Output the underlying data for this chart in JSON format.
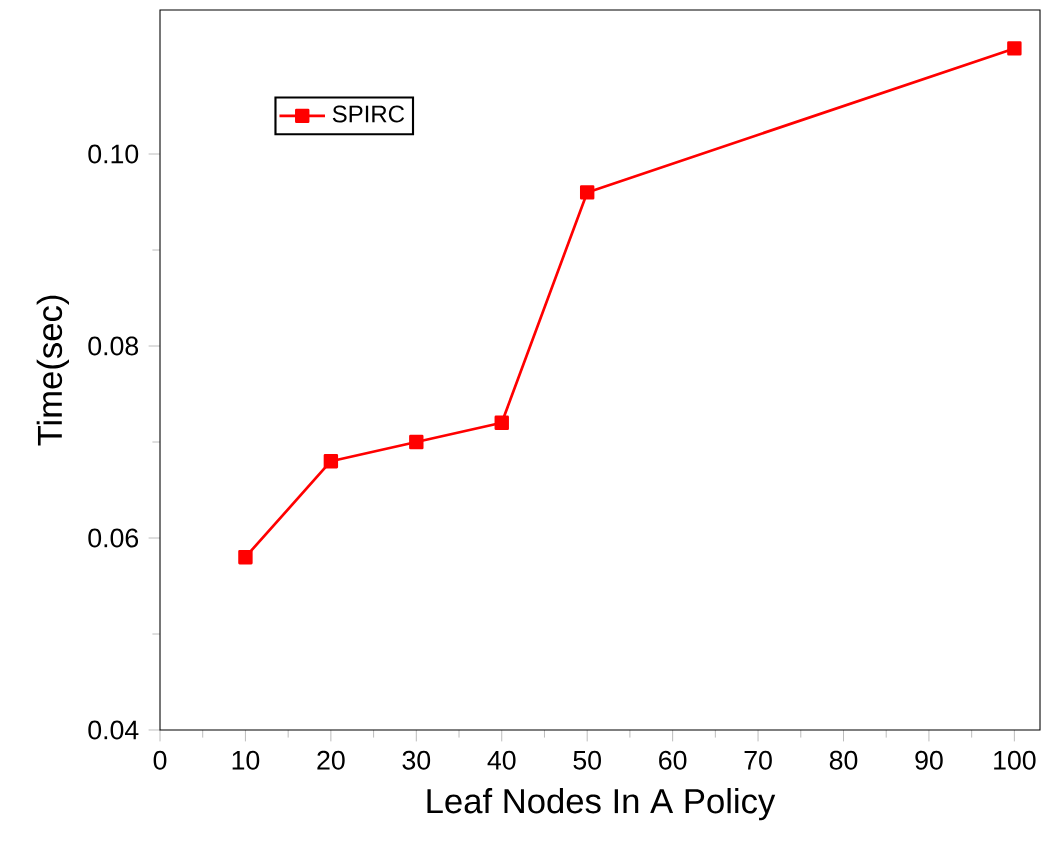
{
  "chart_data": {
    "type": "line",
    "xlabel": "Leaf Nodes In A Policy",
    "ylabel": "Time(sec)",
    "x": [
      10,
      20,
      30,
      40,
      50,
      100
    ],
    "series": [
      {
        "name": "SPIRC",
        "color": "#ff0000",
        "values": [
          0.058,
          0.068,
          0.07,
          0.072,
          0.096,
          0.111
        ]
      }
    ],
    "xlim": [
      0,
      103
    ],
    "xticks": [
      0,
      10,
      20,
      30,
      40,
      50,
      60,
      70,
      80,
      90,
      100
    ],
    "ylim": [
      0.04,
      0.115
    ],
    "yticks": [
      {
        "value": 0.04,
        "label": "0.04"
      },
      {
        "value": 0.06,
        "label": "0.06"
      },
      {
        "value": 0.08,
        "label": "0.08"
      },
      {
        "value": 0.1,
        "label": "0.10"
      }
    ],
    "legend": "top left",
    "marker": "square",
    "line_style": "solid",
    "grid": false
  }
}
